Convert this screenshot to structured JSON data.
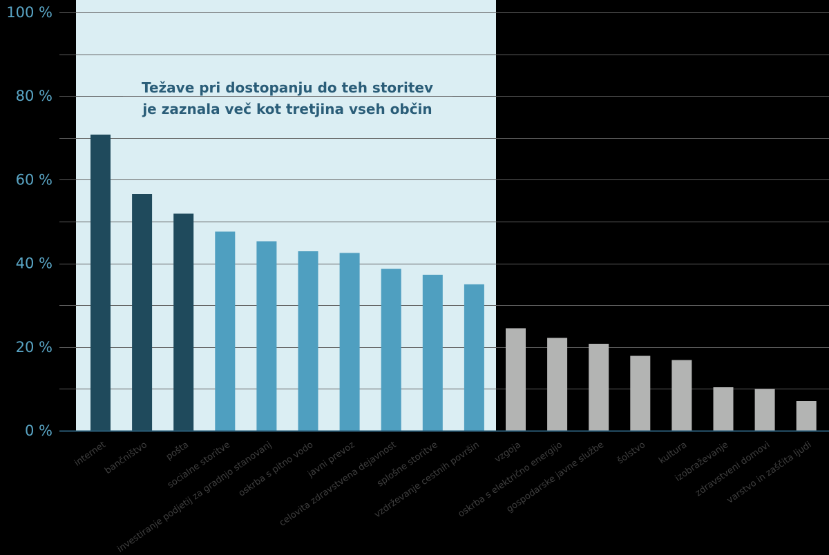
{
  "chart_data": {
    "type": "bar",
    "ylim": [
      0,
      100
    ],
    "yticks": [
      0,
      20,
      40,
      60,
      80,
      100
    ],
    "ytick_labels": [
      "0 %",
      "20 %",
      "40 %",
      "60 %",
      "80 %",
      "100 %"
    ],
    "grid": true,
    "annotation": {
      "line1": "Težave pri dostopanju do teh storitev",
      "line2": "je zaznala več kot tretjina vseh občin"
    },
    "highlight_region_bars": 10,
    "colors": {
      "highlight_bg": "#dbeef3",
      "dark": "#1f4a5c",
      "medium": "#4f9fc0",
      "gray": "#b3b4b3",
      "axis": "#2a5d78"
    },
    "categories": [
      "internet",
      "bančništvo",
      "pošta",
      "socialne storitve",
      "investiranje podjetij za gradnjo stanovanj",
      "oskrba s pitno vodo",
      "javni prevoz",
      "celovita zdravstvena dejavnost",
      "splošne storitve",
      "vzdrževanje cestnih površin",
      "vzgoja",
      "oskrba s električno energijo",
      "gospodarske javne službe",
      "šolstvo",
      "kultura",
      "izobraževanje",
      "zdravstveni domovi",
      "varstvo in zaščita ljudi"
    ],
    "values": [
      70.8,
      56.6,
      51.9,
      47.6,
      45.3,
      42.9,
      42.5,
      38.7,
      37.3,
      35.0,
      24.5,
      22.2,
      20.8,
      17.9,
      16.9,
      10.4,
      10.0,
      7.1
    ],
    "bar_groups": [
      "dark",
      "dark",
      "dark",
      "medium",
      "medium",
      "medium",
      "medium",
      "medium",
      "medium",
      "medium",
      "gray",
      "gray",
      "gray",
      "gray",
      "gray",
      "gray",
      "gray",
      "gray"
    ]
  }
}
